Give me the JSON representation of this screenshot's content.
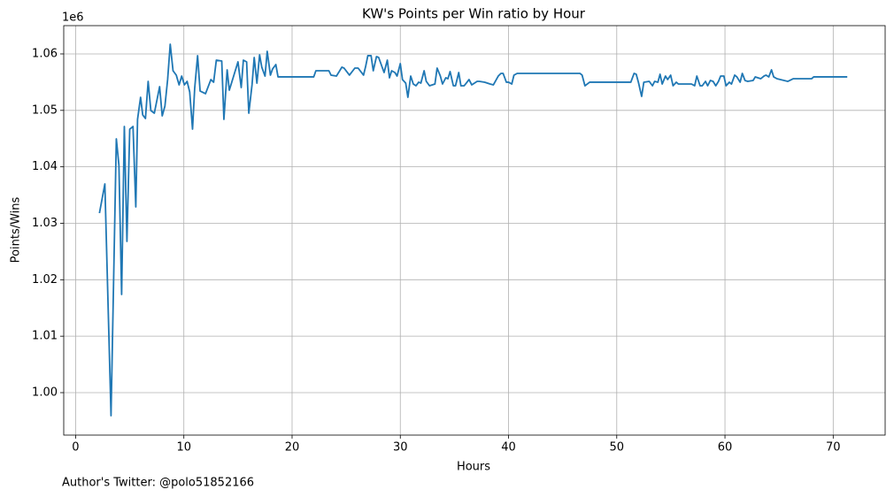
{
  "chart_data": {
    "type": "line",
    "title": "KW's Points per Win ratio by Hour",
    "xlabel": "Hours",
    "ylabel": "Points/Wins",
    "y_offset_label": "1e6",
    "footer": "Author's Twitter: @polo51852166",
    "color": "#1f77b4",
    "grid": true,
    "xlim": [
      -1.1,
      74.8
    ],
    "ylim": [
      992480,
      1065010
    ],
    "xticks": [
      0,
      10,
      20,
      30,
      40,
      50,
      60,
      70
    ],
    "yticks": [
      {
        "value": 1000000,
        "label": "1.00"
      },
      {
        "value": 1010000,
        "label": "1.01"
      },
      {
        "value": 1020000,
        "label": "1.02"
      },
      {
        "value": 1030000,
        "label": "1.03"
      },
      {
        "value": 1040000,
        "label": "1.04"
      },
      {
        "value": 1050000,
        "label": "1.05"
      },
      {
        "value": 1060000,
        "label": "1.06"
      }
    ],
    "x": [
      2.2,
      2.7,
      3.27,
      3.76,
      4.0,
      4.25,
      4.5,
      4.74,
      5.0,
      5.3,
      5.56,
      5.72,
      6.0,
      6.2,
      6.45,
      6.7,
      6.95,
      7.27,
      7.76,
      8.0,
      8.25,
      8.5,
      8.74,
      9.0,
      9.3,
      9.56,
      9.8,
      10.05,
      10.3,
      10.54,
      10.8,
      11.0,
      11.27,
      11.5,
      12.0,
      12.5,
      12.75,
      13.0,
      13.5,
      13.7,
      14.0,
      14.2,
      14.7,
      15.0,
      15.3,
      15.5,
      15.8,
      16.0,
      16.3,
      16.5,
      16.75,
      17.0,
      17.2,
      17.5,
      17.7,
      18.0,
      18.2,
      18.5,
      18.7,
      22.0,
      22.2,
      23.4,
      23.6,
      24.1,
      24.6,
      24.8,
      25.3,
      25.8,
      26.1,
      26.6,
      26.8,
      27.0,
      27.3,
      27.5,
      27.8,
      28.0,
      28.5,
      28.8,
      29.0,
      29.2,
      29.5,
      29.7,
      30.0,
      30.2,
      30.5,
      30.7,
      30.96,
      31.2,
      31.45,
      31.7,
      31.9,
      32.2,
      32.4,
      32.7,
      33.2,
      33.4,
      33.7,
      33.9,
      34.2,
      34.4,
      34.6,
      34.9,
      35.1,
      35.4,
      35.6,
      35.9,
      36.1,
      36.35,
      36.6,
      37.1,
      37.3,
      37.8,
      38.3,
      38.6,
      39.05,
      39.3,
      39.5,
      39.8,
      40.0,
      40.3,
      40.5,
      40.8,
      46.6,
      46.8,
      47.06,
      47.5,
      51.3,
      51.6,
      51.8,
      52.0,
      52.3,
      52.5,
      53.0,
      53.3,
      53.5,
      53.8,
      54.0,
      54.2,
      54.5,
      54.7,
      54.98,
      55.2,
      55.5,
      55.7,
      56.9,
      57.2,
      57.4,
      57.7,
      57.9,
      58.2,
      58.4,
      58.65,
      58.9,
      59.15,
      59.4,
      59.6,
      59.9,
      60.1,
      60.4,
      60.6,
      60.9,
      61.1,
      61.4,
      61.6,
      61.85,
      62.1,
      62.6,
      62.8,
      63.3,
      63.6,
      63.8,
      64.05,
      64.3,
      64.5,
      64.8,
      65.8,
      66.3,
      68.0,
      68.2,
      71.3
    ],
    "values": [
      1031800,
      1036970,
      995920,
      1044960,
      1040260,
      1017390,
      1047150,
      1026790,
      1046680,
      1047150,
      1032900,
      1048410,
      1052320,
      1049190,
      1048560,
      1055140,
      1049970,
      1049500,
      1054200,
      1049030,
      1050760,
      1055460,
      1061720,
      1057020,
      1056240,
      1054520,
      1056080,
      1054520,
      1055140,
      1053260,
      1046680,
      1053890,
      1059690,
      1053420,
      1052950,
      1055460,
      1054990,
      1058900,
      1058750,
      1048410,
      1057180,
      1053580,
      1056710,
      1058590,
      1054050,
      1058900,
      1058590,
      1049500,
      1054520,
      1059370,
      1054830,
      1059840,
      1057650,
      1056080,
      1060470,
      1056240,
      1057340,
      1058120,
      1055930,
      1055930,
      1057020,
      1057020,
      1056240,
      1056080,
      1057650,
      1057490,
      1056240,
      1057490,
      1057490,
      1056240,
      1057810,
      1059690,
      1059690,
      1057020,
      1059530,
      1059370,
      1056710,
      1058900,
      1055770,
      1057020,
      1056710,
      1056080,
      1058280,
      1055460,
      1054830,
      1052320,
      1056080,
      1054670,
      1054360,
      1054990,
      1054830,
      1057020,
      1055140,
      1054360,
      1054670,
      1057490,
      1056080,
      1054670,
      1055770,
      1055610,
      1056870,
      1054360,
      1054360,
      1056710,
      1054360,
      1054360,
      1054830,
      1055460,
      1054520,
      1055140,
      1055140,
      1054990,
      1054670,
      1054520,
      1056080,
      1056550,
      1056550,
      1054990,
      1054990,
      1054670,
      1056240,
      1056550,
      1056550,
      1056240,
      1054360,
      1054990,
      1054990,
      1056550,
      1056400,
      1054990,
      1052480,
      1054990,
      1055140,
      1054360,
      1055140,
      1054990,
      1056400,
      1054670,
      1056080,
      1055460,
      1056240,
      1054360,
      1054990,
      1054670,
      1054670,
      1054360,
      1056080,
      1054360,
      1054360,
      1055140,
      1054360,
      1055300,
      1055140,
      1054360,
      1055140,
      1056080,
      1056080,
      1054360,
      1054990,
      1054670,
      1056240,
      1055930,
      1054990,
      1056550,
      1055300,
      1055140,
      1055300,
      1055930,
      1055610,
      1056080,
      1056240,
      1055930,
      1057180,
      1055930,
      1055610,
      1055140,
      1055610,
      1055610,
      1055930,
      1055930
    ]
  }
}
